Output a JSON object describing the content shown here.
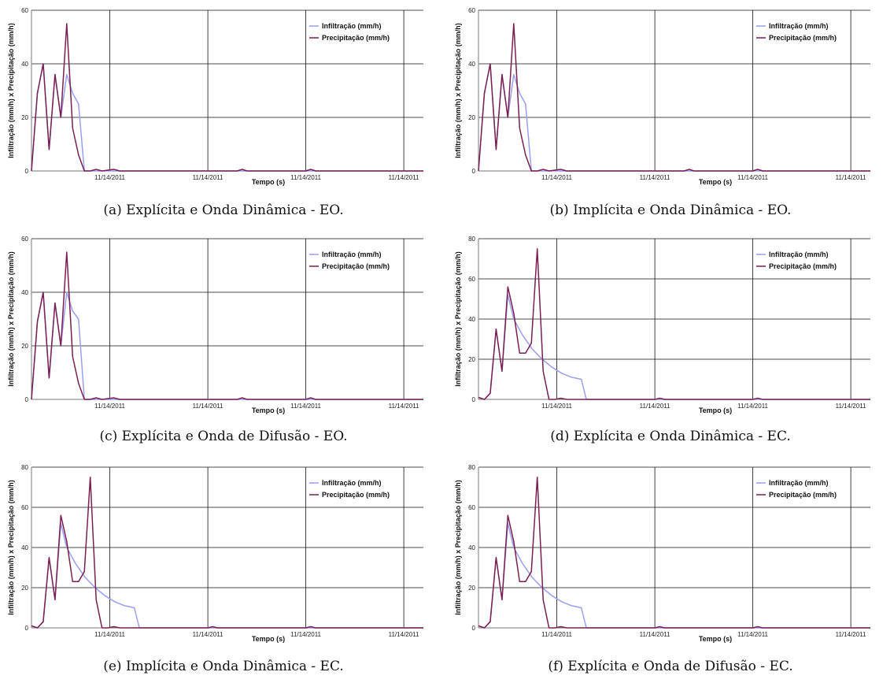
{
  "colors": {
    "infiltration": "#9b9ef0",
    "precipitation": "#7a1f50",
    "grid": "#111111",
    "axis": "#777777"
  },
  "chart_data": [
    {
      "type": "line",
      "caption": "(a) Explícita e Onda Dinâmica - EO.",
      "xlabel": "Tempo (s)",
      "ylabel": "Infiltração (mm/h) x Precipitação (mm/h)",
      "ylim": [
        0,
        60
      ],
      "yticks": [
        0,
        20,
        40,
        60
      ],
      "xlim": [
        0,
        40
      ],
      "xticks": [
        {
          "x": 8,
          "label": "11/14/2011"
        },
        {
          "x": 18,
          "label": "11/14/2011"
        },
        {
          "x": 28,
          "label": "11/14/2011"
        },
        {
          "x": 38,
          "label": "11/14/2011"
        }
      ],
      "grid": true,
      "legend": "top-right",
      "series": [
        {
          "name": "Infiltração (mm/h)",
          "key": "infiltration",
          "x": [
            0,
            0.6,
            1.2,
            1.8,
            2.4,
            3.0,
            3.6,
            4.2,
            4.8,
            5.4,
            6.0,
            6.6,
            7.2,
            40
          ],
          "y": [
            0,
            29,
            40,
            8,
            36,
            20,
            36,
            29,
            25,
            0,
            0,
            0,
            0,
            0
          ]
        },
        {
          "name": "Precipitação (mm/h)",
          "key": "precipitation",
          "x": [
            0,
            0.6,
            1.2,
            1.8,
            2.4,
            3.0,
            3.6,
            4.2,
            4.8,
            5.4,
            6.0,
            6.6,
            7.2,
            8.4,
            9.0,
            12,
            21,
            21.5,
            22,
            27,
            28,
            28.5,
            29,
            40
          ],
          "y": [
            0,
            29,
            40,
            8,
            36,
            20,
            55,
            16,
            6,
            0,
            0,
            0.6,
            0,
            0.6,
            0,
            0,
            0,
            0.6,
            0,
            0,
            0,
            0.6,
            0,
            0
          ]
        }
      ]
    },
    {
      "type": "line",
      "caption": "(b) Implícita e Onda Dinâmica - EO.",
      "xlabel": "Tempo (s)",
      "ylabel": "Infiltração (mm/h) x Precipitação (mm/h)",
      "ylim": [
        0,
        60
      ],
      "yticks": [
        0,
        20,
        40,
        60
      ],
      "xlim": [
        0,
        40
      ],
      "xticks": [
        {
          "x": 8,
          "label": "11/14/2011"
        },
        {
          "x": 18,
          "label": "11/14/2011"
        },
        {
          "x": 28,
          "label": "11/14/2011"
        },
        {
          "x": 38,
          "label": "11/14/2011"
        }
      ],
      "grid": true,
      "legend": "top-right",
      "series": [
        {
          "name": "Infiltração (mm/h)",
          "key": "infiltration",
          "x": [
            0,
            0.6,
            1.2,
            1.8,
            2.4,
            3.0,
            3.6,
            4.2,
            4.8,
            5.4,
            6.0,
            6.6,
            7.2,
            40
          ],
          "y": [
            0,
            29,
            40,
            8,
            36,
            20,
            36,
            29,
            25,
            0,
            0,
            0,
            0,
            0
          ]
        },
        {
          "name": "Precipitação (mm/h)",
          "key": "precipitation",
          "x": [
            0,
            0.6,
            1.2,
            1.8,
            2.4,
            3.0,
            3.6,
            4.2,
            4.8,
            5.4,
            6.0,
            6.6,
            7.2,
            8.4,
            9.0,
            12,
            21,
            21.5,
            22,
            27,
            28,
            28.5,
            29,
            40
          ],
          "y": [
            0,
            29,
            40,
            8,
            36,
            20,
            55,
            16,
            6,
            0,
            0,
            0.6,
            0,
            0.6,
            0,
            0,
            0,
            0.6,
            0,
            0,
            0,
            0.6,
            0,
            0
          ]
        }
      ]
    },
    {
      "type": "line",
      "caption": "(c) Explícita e Onda de Difusão - EO.",
      "xlabel": "Tempo (s)",
      "ylabel": "Infiltração (mm/h) x Precipitação (mm/h)",
      "ylim": [
        0,
        60
      ],
      "yticks": [
        0,
        20,
        40,
        60
      ],
      "xlim": [
        0,
        40
      ],
      "xticks": [
        {
          "x": 8,
          "label": "11/14/2011"
        },
        {
          "x": 18,
          "label": "11/14/2011"
        },
        {
          "x": 28,
          "label": "11/14/2011"
        },
        {
          "x": 38,
          "label": "11/14/2011"
        }
      ],
      "grid": true,
      "legend": "top-right",
      "series": [
        {
          "name": "Infiltração (mm/h)",
          "key": "infiltration",
          "x": [
            0,
            0.6,
            1.2,
            1.8,
            2.4,
            3.0,
            3.6,
            4.2,
            4.8,
            5.4,
            6.0,
            6.6,
            7.2,
            40
          ],
          "y": [
            0,
            29,
            40,
            8,
            36,
            20,
            40,
            33,
            30,
            0,
            0,
            0,
            0,
            0
          ]
        },
        {
          "name": "Precipitação (mm/h)",
          "key": "precipitation",
          "x": [
            0,
            0.6,
            1.2,
            1.8,
            2.4,
            3.0,
            3.6,
            4.2,
            4.8,
            5.4,
            6.0,
            6.6,
            7.2,
            8.4,
            9.0,
            12,
            21,
            21.5,
            22,
            27,
            28,
            28.5,
            29,
            40
          ],
          "y": [
            0,
            29,
            40,
            8,
            36,
            20,
            55,
            16,
            6,
            0,
            0,
            0.6,
            0,
            0.6,
            0,
            0,
            0,
            0.6,
            0,
            0,
            0,
            0.6,
            0,
            0
          ]
        }
      ]
    },
    {
      "type": "line",
      "caption": "(d) Explícita e Onda Dinâmica - EC.",
      "xlabel": "Tempo (s)",
      "ylabel": "Infiltração (mm/h) x Precipitação (mm/h)",
      "ylim": [
        0,
        80
      ],
      "yticks": [
        0,
        20,
        40,
        60,
        80
      ],
      "xlim": [
        0,
        40
      ],
      "xticks": [
        {
          "x": 8,
          "label": "11/14/2011"
        },
        {
          "x": 18,
          "label": "11/14/2011"
        },
        {
          "x": 28,
          "label": "11/14/2011"
        },
        {
          "x": 38,
          "label": "11/14/2011"
        }
      ],
      "grid": true,
      "legend": "top-right",
      "series": [
        {
          "name": "Infiltração (mm/h)",
          "key": "infiltration",
          "x": [
            0,
            0.6,
            1.2,
            1.8,
            2.4,
            3.0,
            3.6,
            4.5,
            5.5,
            6.5,
            7.5,
            8.5,
            9.5,
            10.5,
            11,
            40
          ],
          "y": [
            1,
            0,
            3,
            35,
            14,
            52,
            40,
            32,
            25,
            20,
            16,
            13,
            11,
            10,
            0,
            0
          ]
        },
        {
          "name": "Precipitação (mm/h)",
          "key": "precipitation",
          "x": [
            0,
            0.6,
            1.2,
            1.8,
            2.4,
            3.0,
            3.6,
            4.2,
            4.8,
            5.4,
            6.0,
            6.6,
            7.2,
            7.8,
            8.4,
            9.0,
            18,
            18.5,
            19,
            28,
            28.5,
            29,
            40
          ],
          "y": [
            1,
            0,
            3,
            35,
            14,
            56,
            43,
            23,
            23,
            28,
            75,
            14,
            0,
            0,
            0.6,
            0,
            0,
            0.6,
            0,
            0,
            0.6,
            0,
            0
          ]
        }
      ]
    },
    {
      "type": "line",
      "caption": "(e) Implícita e Onda Dinâmica - EC.",
      "xlabel": "Tempo (s)",
      "ylabel": "Infiltração (mm/h) x Precipitação (mm/h)",
      "ylim": [
        0,
        80
      ],
      "yticks": [
        0,
        20,
        40,
        60,
        80
      ],
      "xlim": [
        0,
        40
      ],
      "xticks": [
        {
          "x": 8,
          "label": "11/14/2011"
        },
        {
          "x": 18,
          "label": "11/14/2011"
        },
        {
          "x": 28,
          "label": "11/14/2011"
        },
        {
          "x": 38,
          "label": "11/14/2011"
        }
      ],
      "grid": true,
      "legend": "top-right",
      "series": [
        {
          "name": "Infiltração (mm/h)",
          "key": "infiltration",
          "x": [
            0,
            0.6,
            1.2,
            1.8,
            2.4,
            3.0,
            3.6,
            4.5,
            5.5,
            6.5,
            7.5,
            8.5,
            9.5,
            10.5,
            11,
            40
          ],
          "y": [
            1,
            0,
            3,
            35,
            14,
            52,
            40,
            32,
            25,
            20,
            16,
            13,
            11,
            10,
            0,
            0
          ]
        },
        {
          "name": "Precipitação (mm/h)",
          "key": "precipitation",
          "x": [
            0,
            0.6,
            1.2,
            1.8,
            2.4,
            3.0,
            3.6,
            4.2,
            4.8,
            5.4,
            6.0,
            6.6,
            7.2,
            7.8,
            8.4,
            9.0,
            18,
            18.5,
            19,
            28,
            28.5,
            29,
            40
          ],
          "y": [
            1,
            0,
            3,
            35,
            14,
            56,
            43,
            23,
            23,
            28,
            75,
            14,
            0,
            0,
            0.6,
            0,
            0,
            0.6,
            0,
            0,
            0.6,
            0,
            0
          ]
        }
      ]
    },
    {
      "type": "line",
      "caption": "(f) Explícita e Onda de Difusão - EC.",
      "xlabel": "Tempo (s)",
      "ylabel": "Infiltração (mm/h) x Precipitação (mm/h)",
      "ylim": [
        0,
        80
      ],
      "yticks": [
        0,
        20,
        40,
        60,
        80
      ],
      "xlim": [
        0,
        40
      ],
      "xticks": [
        {
          "x": 8,
          "label": "11/14/2011"
        },
        {
          "x": 18,
          "label": "11/14/2011"
        },
        {
          "x": 28,
          "label": "11/14/2011"
        },
        {
          "x": 38,
          "label": "11/14/2011"
        }
      ],
      "grid": true,
      "legend": "top-right",
      "series": [
        {
          "name": "Infiltração (mm/h)",
          "key": "infiltration",
          "x": [
            0,
            0.6,
            1.2,
            1.8,
            2.4,
            3.0,
            3.6,
            4.5,
            5.5,
            6.5,
            7.5,
            8.5,
            9.5,
            10.5,
            11,
            40
          ],
          "y": [
            1,
            0,
            3,
            35,
            14,
            52,
            40,
            32,
            25,
            20,
            16,
            13,
            11,
            10,
            0,
            0
          ]
        },
        {
          "name": "Precipitação (mm/h)",
          "key": "precipitation",
          "x": [
            0,
            0.6,
            1.2,
            1.8,
            2.4,
            3.0,
            3.6,
            4.2,
            4.8,
            5.4,
            6.0,
            6.6,
            7.2,
            7.8,
            8.4,
            9.0,
            18,
            18.5,
            19,
            28,
            28.5,
            29,
            40
          ],
          "y": [
            1,
            0,
            3,
            35,
            14,
            56,
            43,
            23,
            23,
            28,
            75,
            14,
            0,
            0,
            0.6,
            0,
            0,
            0.6,
            0,
            0,
            0.6,
            0,
            0
          ]
        }
      ]
    }
  ]
}
